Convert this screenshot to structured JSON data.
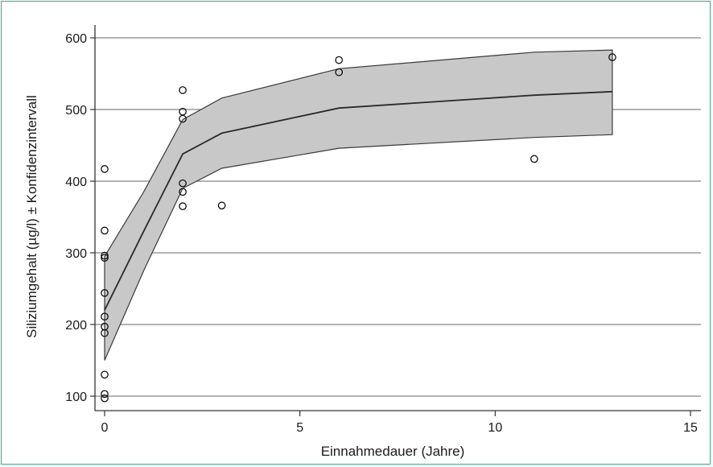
{
  "chart_data": {
    "type": "line",
    "xlabel": "Einnahmedauer (Jahre)",
    "ylabel": "Siliziumgehalt (µg/l) ± Konfidenzintervall",
    "xlim": [
      0,
      15
    ],
    "ylim": [
      90,
      615
    ],
    "x_ticks": [
      0,
      5,
      10,
      15
    ],
    "y_ticks": [
      100,
      200,
      300,
      400,
      500,
      600
    ],
    "grid": "horizontal",
    "legend": "none",
    "colors": {
      "band": "#c8c8c8",
      "line": "#2b2b2b",
      "grid": "#9a9a9a",
      "frame": "#3fa58a"
    },
    "fit": {
      "x": [
        0,
        1,
        2,
        3,
        6,
        11,
        13
      ],
      "y": [
        220,
        330,
        438,
        467,
        502,
        520,
        525
      ],
      "lower": [
        150,
        275,
        390,
        418,
        446,
        461,
        465
      ],
      "upper": [
        295,
        385,
        486,
        516,
        557,
        580,
        583
      ]
    },
    "points": [
      {
        "x": 0,
        "y": 417
      },
      {
        "x": 0,
        "y": 331
      },
      {
        "x": 0,
        "y": 296
      },
      {
        "x": 0,
        "y": 293
      },
      {
        "x": 0,
        "y": 244
      },
      {
        "x": 0,
        "y": 211
      },
      {
        "x": 0,
        "y": 197
      },
      {
        "x": 0,
        "y": 188
      },
      {
        "x": 0,
        "y": 130
      },
      {
        "x": 0,
        "y": 103
      },
      {
        "x": 0,
        "y": 97
      },
      {
        "x": 2,
        "y": 527
      },
      {
        "x": 2,
        "y": 497
      },
      {
        "x": 2,
        "y": 487
      },
      {
        "x": 2,
        "y": 397
      },
      {
        "x": 2,
        "y": 385
      },
      {
        "x": 2,
        "y": 365
      },
      {
        "x": 3,
        "y": 366
      },
      {
        "x": 6,
        "y": 569
      },
      {
        "x": 6,
        "y": 552
      },
      {
        "x": 11,
        "y": 431
      },
      {
        "x": 13,
        "y": 573
      }
    ]
  }
}
